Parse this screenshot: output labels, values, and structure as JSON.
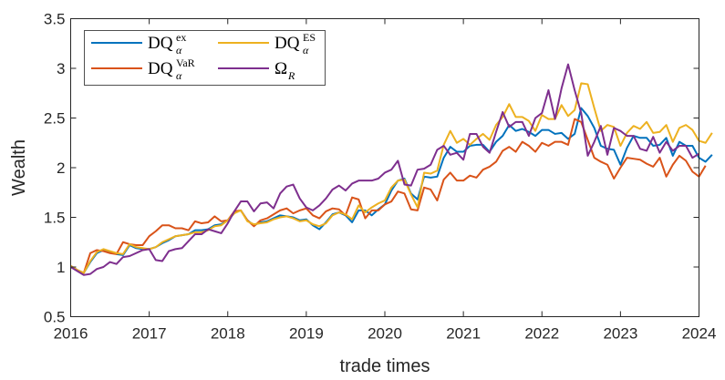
{
  "chart_data": {
    "type": "line",
    "title": "",
    "xlabel": "trade times",
    "ylabel": "Wealth",
    "xlim": [
      2016,
      2024
    ],
    "ylim": [
      0.5,
      3.5
    ],
    "x_ticks": [
      "2016",
      "2017",
      "2018",
      "2019",
      "2020",
      "2021",
      "2022",
      "2023",
      "2024"
    ],
    "y_ticks": [
      "0.5",
      "1",
      "1.5",
      "2",
      "2.5",
      "3",
      "3.5"
    ],
    "x_tick_values": [
      2016,
      2017,
      2018,
      2019,
      2020,
      2021,
      2022,
      2023,
      2024
    ],
    "y_tick_values": [
      0.5,
      1,
      1.5,
      2,
      2.5,
      3,
      3.5
    ],
    "grid": false,
    "legend_position": "top-left",
    "frequency": "monthly",
    "x_start": 2016,
    "x_step": 0.08333,
    "series": [
      {
        "name": "DQ_alpha^ex",
        "legend": {
          "base": "DQ",
          "sub": "α",
          "sup": "ex"
        },
        "color": "#0072BD",
        "values": [
          1.01,
          0.97,
          0.94,
          1.05,
          1.14,
          1.17,
          1.15,
          1.13,
          1.12,
          1.22,
          1.19,
          1.18,
          1.18,
          1.2,
          1.24,
          1.27,
          1.31,
          1.32,
          1.33,
          1.37,
          1.37,
          1.38,
          1.42,
          1.43,
          1.47,
          1.55,
          1.57,
          1.47,
          1.42,
          1.45,
          1.46,
          1.49,
          1.52,
          1.51,
          1.5,
          1.47,
          1.48,
          1.42,
          1.38,
          1.45,
          1.53,
          1.55,
          1.52,
          1.45,
          1.57,
          1.57,
          1.52,
          1.58,
          1.63,
          1.77,
          1.87,
          1.89,
          1.74,
          1.68,
          1.91,
          1.9,
          1.91,
          2.1,
          2.21,
          2.16,
          2.16,
          2.22,
          2.23,
          2.23,
          2.16,
          2.26,
          2.32,
          2.43,
          2.37,
          2.39,
          2.36,
          2.32,
          2.38,
          2.38,
          2.34,
          2.35,
          2.29,
          2.34,
          2.6,
          2.52,
          2.4,
          2.22,
          2.19,
          2.18,
          2.03,
          2.2,
          2.32,
          2.3,
          2.3,
          2.22,
          2.23,
          2.3,
          2.12,
          2.26,
          2.22,
          2.22,
          2.1,
          2.06,
          2.13
        ]
      },
      {
        "name": "DQ_alpha^VaR",
        "legend": {
          "base": "DQ",
          "sub": "α",
          "sup": "VaR"
        },
        "color": "#D95319",
        "values": [
          1.01,
          0.97,
          0.94,
          1.14,
          1.17,
          1.16,
          1.14,
          1.13,
          1.25,
          1.23,
          1.22,
          1.22,
          1.31,
          1.36,
          1.42,
          1.42,
          1.39,
          1.39,
          1.37,
          1.46,
          1.44,
          1.45,
          1.51,
          1.46,
          1.47,
          1.56,
          1.57,
          1.47,
          1.41,
          1.47,
          1.49,
          1.53,
          1.57,
          1.59,
          1.54,
          1.57,
          1.59,
          1.52,
          1.49,
          1.56,
          1.59,
          1.58,
          1.52,
          1.7,
          1.68,
          1.49,
          1.57,
          1.57,
          1.63,
          1.66,
          1.76,
          1.74,
          1.58,
          1.57,
          1.8,
          1.78,
          1.67,
          1.88,
          1.95,
          1.87,
          1.87,
          1.92,
          1.9,
          1.98,
          2.01,
          2.06,
          2.17,
          2.21,
          2.16,
          2.26,
          2.22,
          2.16,
          2.25,
          2.22,
          2.26,
          2.26,
          2.23,
          2.49,
          2.46,
          2.28,
          2.1,
          2.06,
          2.03,
          1.89,
          2.0,
          2.1,
          2.09,
          2.08,
          2.04,
          2.01,
          2.1,
          1.91,
          2.03,
          2.12,
          2.07,
          1.96,
          1.91,
          2.02
        ]
      },
      {
        "name": "DQ_alpha^ES",
        "legend": {
          "base": "DQ",
          "sub": "α",
          "sup": "ES"
        },
        "color": "#EDB120",
        "values": [
          1.01,
          0.97,
          0.94,
          1.06,
          1.15,
          1.18,
          1.16,
          1.14,
          1.13,
          1.23,
          1.2,
          1.19,
          1.18,
          1.2,
          1.25,
          1.28,
          1.31,
          1.32,
          1.33,
          1.35,
          1.35,
          1.37,
          1.41,
          1.42,
          1.47,
          1.54,
          1.57,
          1.46,
          1.43,
          1.44,
          1.45,
          1.48,
          1.5,
          1.51,
          1.49,
          1.46,
          1.47,
          1.43,
          1.41,
          1.44,
          1.52,
          1.55,
          1.53,
          1.48,
          1.62,
          1.55,
          1.6,
          1.64,
          1.67,
          1.8,
          1.87,
          1.88,
          1.73,
          1.6,
          1.95,
          1.94,
          1.97,
          2.23,
          2.37,
          2.25,
          2.29,
          2.23,
          2.29,
          2.34,
          2.28,
          2.43,
          2.51,
          2.64,
          2.51,
          2.51,
          2.47,
          2.37,
          2.53,
          2.49,
          2.49,
          2.63,
          2.52,
          2.58,
          2.85,
          2.84,
          2.6,
          2.37,
          2.43,
          2.41,
          2.22,
          2.35,
          2.42,
          2.39,
          2.46,
          2.35,
          2.36,
          2.43,
          2.26,
          2.4,
          2.43,
          2.38,
          2.27,
          2.25,
          2.35
        ]
      },
      {
        "name": "Omega_R",
        "legend": {
          "base": "Ω",
          "sub": "R",
          "sup": ""
        },
        "color": "#7E2F8E",
        "values": [
          1.0,
          0.96,
          0.92,
          0.93,
          0.98,
          1.0,
          1.05,
          1.03,
          1.1,
          1.11,
          1.14,
          1.17,
          1.18,
          1.07,
          1.06,
          1.16,
          1.18,
          1.19,
          1.26,
          1.33,
          1.33,
          1.38,
          1.36,
          1.34,
          1.44,
          1.56,
          1.66,
          1.66,
          1.56,
          1.64,
          1.65,
          1.59,
          1.74,
          1.81,
          1.83,
          1.69,
          1.6,
          1.57,
          1.62,
          1.69,
          1.78,
          1.82,
          1.77,
          1.84,
          1.87,
          1.87,
          1.87,
          1.89,
          1.95,
          1.98,
          2.07,
          1.83,
          1.82,
          1.98,
          1.99,
          2.03,
          2.18,
          2.22,
          2.13,
          2.15,
          2.08,
          2.34,
          2.34,
          2.21,
          2.15,
          2.36,
          2.56,
          2.41,
          2.46,
          2.46,
          2.32,
          2.5,
          2.55,
          2.78,
          2.49,
          2.8,
          3.04,
          2.78,
          2.55,
          2.12,
          2.26,
          2.42,
          2.13,
          2.4,
          2.37,
          2.32,
          2.32,
          2.19,
          2.17,
          2.31,
          2.15,
          2.26,
          2.17,
          2.22,
          2.22,
          2.1,
          2.14
        ]
      }
    ]
  }
}
